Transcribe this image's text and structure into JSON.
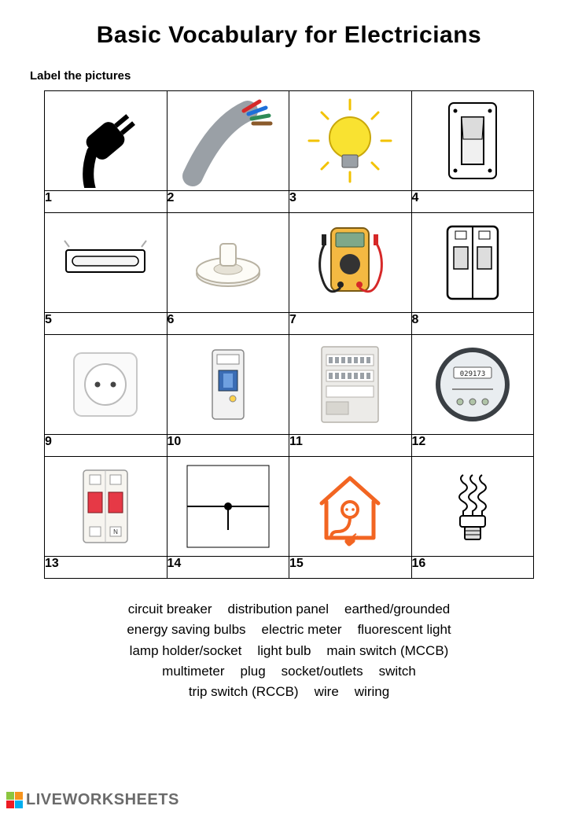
{
  "title": "Basic Vocabulary for Electricians",
  "instruction": "Label the pictures",
  "numbers": [
    "1",
    "2",
    "3",
    "4",
    "5",
    "6",
    "7",
    "8",
    "9",
    "10",
    "11",
    "12",
    "13",
    "14",
    "15",
    "16"
  ],
  "icons": [
    "plug",
    "wire",
    "lightbulb",
    "switch",
    "fluorescent",
    "lampholder",
    "multimeter",
    "circuitbreaker",
    "socket",
    "rccb",
    "panel",
    "meter",
    "mccb",
    "wiring",
    "earthed",
    "cfl"
  ],
  "wordbank": [
    "circuit breaker",
    "distribution panel",
    "earthed/grounded",
    "energy saving bulbs",
    "electric meter",
    "fluorescent light",
    "lamp holder/socket",
    "light bulb",
    "main switch (MCCB)",
    "multimeter",
    "plug",
    "socket/outlets",
    "switch",
    "trip switch (RCCB)",
    "wire",
    "wiring"
  ],
  "wordbank_breaks": [
    3,
    6,
    9,
    13,
    16
  ],
  "footer_text": "LIVEWORKSHEETS",
  "footer_colors": [
    "#8cc63f",
    "#f7941d",
    "#ed1c24",
    "#00aeef"
  ],
  "colors": {
    "bulb_yellow": "#f9e231",
    "bulb_rays": "#f2c200",
    "wire_gray": "#9aa0a6",
    "wire_red": "#d62828",
    "wire_blue": "#1e6fd9",
    "wire_green": "#2e8b57",
    "wire_brown": "#8a5a2b",
    "multimeter_body": "#f4b942",
    "multimeter_screen": "#7fa88a",
    "multimeter_red": "#d62828",
    "multimeter_black": "#222222",
    "house_orange": "#f26522",
    "mccb_red": "#e63946",
    "meter_face": "#e9edf0",
    "meter_ring": "#3a3f44"
  }
}
